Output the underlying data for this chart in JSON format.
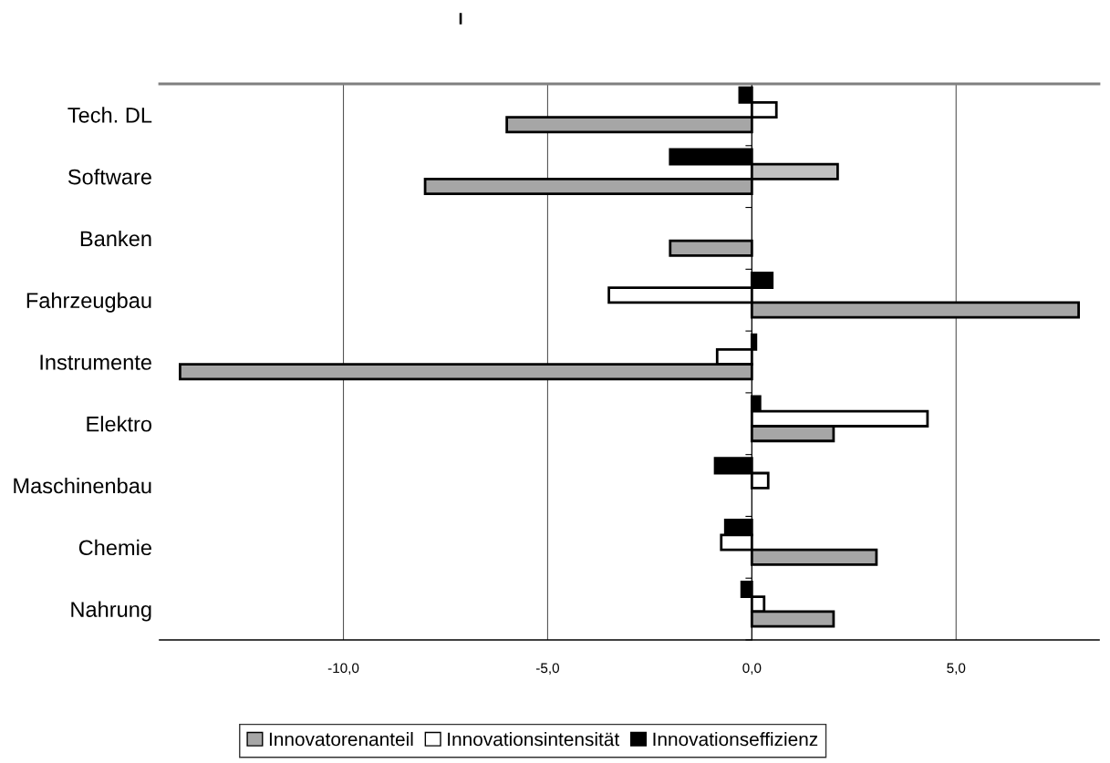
{
  "chart_data": {
    "type": "bar",
    "orientation": "horizontal",
    "title": "I",
    "categories": [
      "Tech. DL",
      "Software",
      "Banken",
      "Fahrzeugbau",
      "Instrumente",
      "Elektro",
      "Maschinenbau",
      "Chemie",
      "Nahrung"
    ],
    "series": [
      {
        "name": "Innovationseffizienz",
        "color": "#000000",
        "values": [
          -0.3,
          -2.0,
          null,
          0.5,
          0.1,
          0.2,
          -0.9,
          -0.65,
          -0.25
        ]
      },
      {
        "name": "Innovationsintensität",
        "color": "#ffffff",
        "colors": [
          "#ffffff",
          "#c0c0c0",
          "#ffffff",
          "#ffffff",
          "#ffffff",
          "#ffffff",
          "#ffffff",
          "#ffffff",
          "#ffffff"
        ],
        "values": [
          0.6,
          2.1,
          null,
          -3.5,
          -0.85,
          4.3,
          0.4,
          -0.75,
          0.3
        ]
      },
      {
        "name": "Innovatorenanteil",
        "color": "#a6a6a6",
        "values": [
          -6.0,
          -8.0,
          -2.0,
          8.0,
          -14.0,
          2.0,
          null,
          3.05,
          2.0
        ]
      }
    ],
    "xlim": [
      -14.5,
      8.5
    ],
    "xticks": [
      {
        "value": -10,
        "label": "-10,0"
      },
      {
        "value": -5,
        "label": "-5,0"
      },
      {
        "value": 0,
        "label": "0,0"
      },
      {
        "value": 5,
        "label": "5,0"
      }
    ],
    "grid": "x",
    "legend": "bottom"
  }
}
